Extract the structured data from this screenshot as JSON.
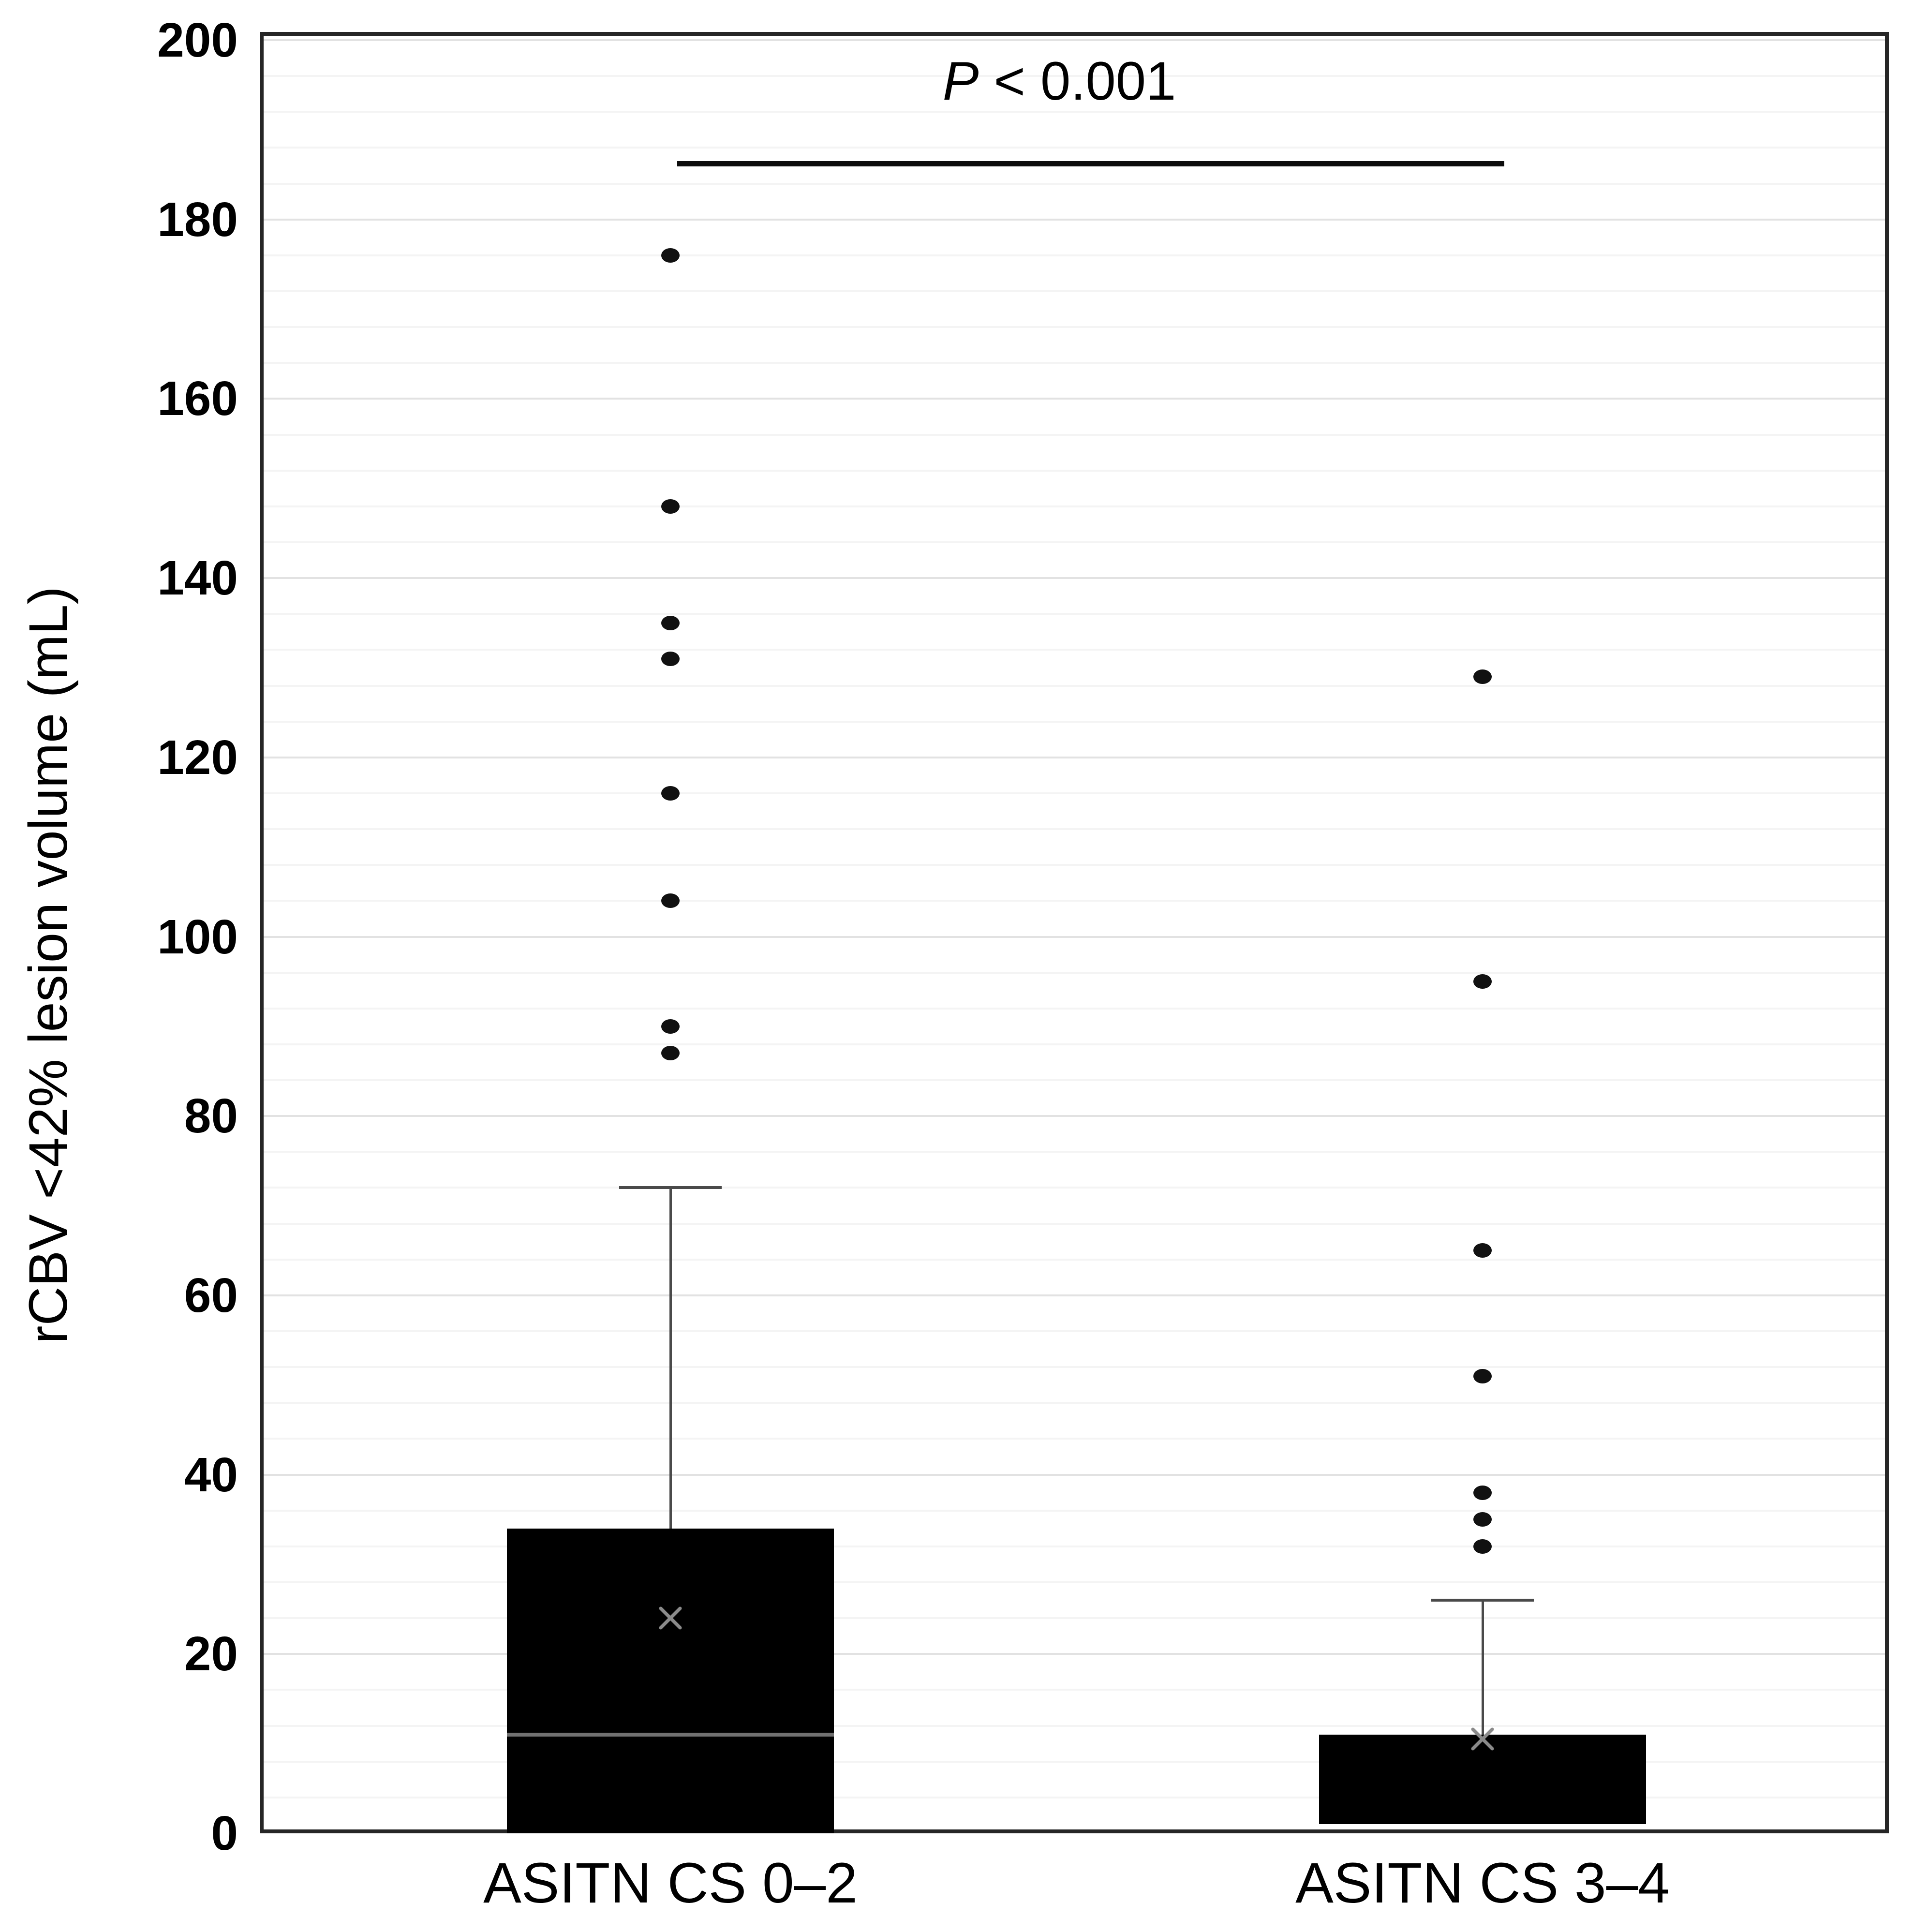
{
  "chart_data": {
    "type": "box",
    "title": "",
    "ylabel": "rCBV <42% lesion volume (mL)",
    "xlabel": "",
    "ylim": [
      0,
      200
    ],
    "yticks": [
      0,
      20,
      40,
      60,
      80,
      100,
      120,
      140,
      160,
      180,
      200
    ],
    "major_grid_step": 20,
    "minor_grid_step": 4,
    "grid": "horizontal-only",
    "legend": "none",
    "categories": [
      "ASITN CS 0–2",
      "ASITN CS 3–4"
    ],
    "series": [
      {
        "name": "ASITN CS 0–2",
        "q1": 0,
        "median": 11,
        "q3": 34,
        "whisker_low": 0,
        "whisker_high": 72,
        "mean": 24,
        "outliers": [
          87,
          90,
          104,
          116,
          131,
          135,
          148,
          176
        ]
      },
      {
        "name": "ASITN CS 3–4",
        "q1": 1,
        "median": null,
        "q3": 11,
        "whisker_low": 1,
        "whisker_high": 26,
        "mean": 10.5,
        "outliers": [
          32,
          35,
          38,
          51,
          65,
          95,
          129
        ]
      }
    ],
    "annotation": {
      "p_symbol": "P",
      "rest": " < 0.001",
      "line_y": 186
    }
  },
  "colors": {
    "background": "#ffffff",
    "box_fill": "#000000",
    "median_line": "#707070",
    "whisker": "#4a4a4a",
    "mean_marker": "#8a8a8a",
    "outlier": "#111111",
    "frame": "#262626",
    "grid_minor": "#f4f4f4",
    "grid_major": "#e2e2e2",
    "significance_line": "#0d0d0d",
    "text": "#000000"
  }
}
